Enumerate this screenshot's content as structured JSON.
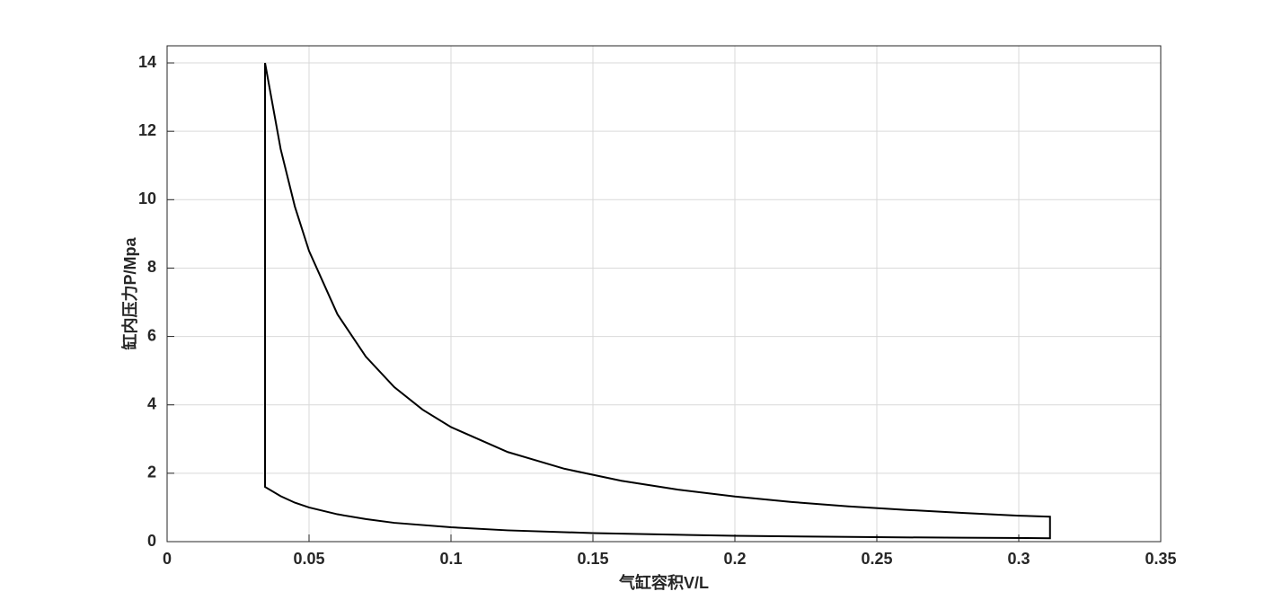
{
  "chart_data": {
    "type": "line",
    "xlabel": "气缸容积V/L",
    "ylabel": "缸内压力P/Mpa",
    "xlim": [
      0,
      0.35
    ],
    "ylim": [
      0,
      14.5
    ],
    "xticks": [
      0,
      0.05,
      0.1,
      0.15,
      0.2,
      0.25,
      0.3,
      0.35
    ],
    "yticks": [
      0,
      2,
      4,
      6,
      8,
      10,
      12,
      14
    ],
    "grid": true,
    "series": [
      {
        "color": "#000000",
        "x": [
          0.0345,
          0.04,
          0.045,
          0.05,
          0.06,
          0.07,
          0.08,
          0.09,
          0.1,
          0.12,
          0.14,
          0.16,
          0.18,
          0.2,
          0.22,
          0.24,
          0.26,
          0.28,
          0.3,
          0.311,
          0.311,
          0.28,
          0.25,
          0.2,
          0.15,
          0.12,
          0.1,
          0.08,
          0.07,
          0.06,
          0.05,
          0.045,
          0.04,
          0.0345,
          0.0345
        ],
        "values": [
          14,
          11.48,
          9.8,
          8.5,
          6.65,
          5.41,
          4.52,
          3.86,
          3.35,
          2.62,
          2.13,
          1.78,
          1.52,
          1.32,
          1.16,
          1.03,
          0.93,
          0.84,
          0.76,
          0.73,
          0.1,
          0.114,
          0.13,
          0.17,
          0.25,
          0.33,
          0.42,
          0.55,
          0.66,
          0.8,
          1.0,
          1.14,
          1.33,
          1.6,
          14
        ]
      }
    ]
  }
}
